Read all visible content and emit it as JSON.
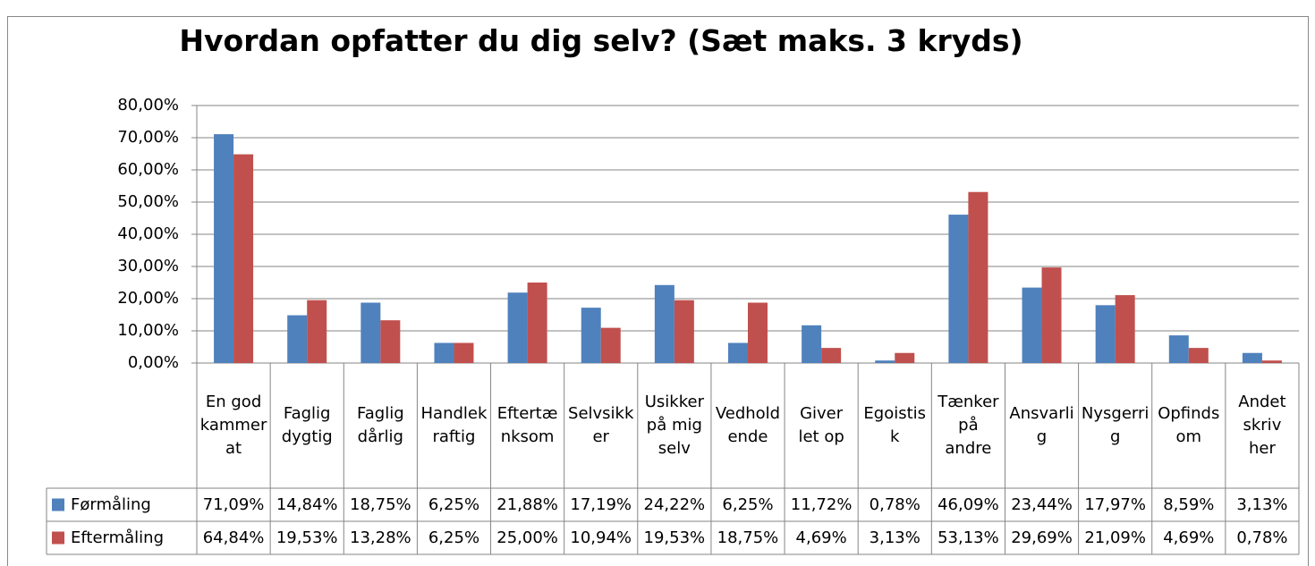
{
  "chart_data": {
    "type": "bar",
    "title": "Hvordan opfatter du dig selv? (Sæt maks. 3 kryds)",
    "categories": [
      "En god kammerat",
      "Faglig dygtig",
      "Faglig dårlig",
      "Handlekraftig",
      "Eftertænksom",
      "Selvsikker",
      "Usikker på mig selv",
      "Vedholdende",
      "Giver let op",
      "Egoistisk",
      "Tænker på andre",
      "Ansvarlig",
      "Nysgerrig",
      "Opfindsom",
      "Andet skriv her"
    ],
    "series": [
      {
        "name": "Førmåling",
        "color": "#4f81bd",
        "values": [
          71.09,
          14.84,
          18.75,
          6.25,
          21.88,
          17.19,
          24.22,
          6.25,
          11.72,
          0.78,
          46.09,
          23.44,
          17.97,
          8.59,
          3.13
        ],
        "value_labels": [
          "71,09%",
          "14,84%",
          "18,75%",
          "6,25%",
          "21,88%",
          "17,19%",
          "24,22%",
          "6,25%",
          "11,72%",
          "0,78%",
          "46,09%",
          "23,44%",
          "17,97%",
          "8,59%",
          "3,13%"
        ]
      },
      {
        "name": "Eftermåling",
        "color": "#c0504d",
        "values": [
          64.84,
          19.53,
          13.28,
          6.25,
          25.0,
          10.94,
          19.53,
          18.75,
          4.69,
          3.13,
          53.13,
          29.69,
          21.09,
          4.69,
          0.78
        ],
        "value_labels": [
          "64,84%",
          "19,53%",
          "13,28%",
          "6,25%",
          "25,00%",
          "10,94%",
          "19,53%",
          "18,75%",
          "4,69%",
          "3,13%",
          "53,13%",
          "29,69%",
          "21,09%",
          "4,69%",
          "0,78%"
        ]
      }
    ],
    "ylim": [
      0,
      80
    ],
    "yticks": [
      {
        "value": 0,
        "label": "0,00%"
      },
      {
        "value": 10,
        "label": "10,00%"
      },
      {
        "value": 20,
        "label": "20,00%"
      },
      {
        "value": 30,
        "label": "30,00%"
      },
      {
        "value": 40,
        "label": "40,00%"
      },
      {
        "value": 50,
        "label": "50,00%"
      },
      {
        "value": 60,
        "label": "60,00%"
      },
      {
        "value": 70,
        "label": "70,00%"
      },
      {
        "value": 80,
        "label": "80,00%"
      }
    ],
    "grid": true
  }
}
